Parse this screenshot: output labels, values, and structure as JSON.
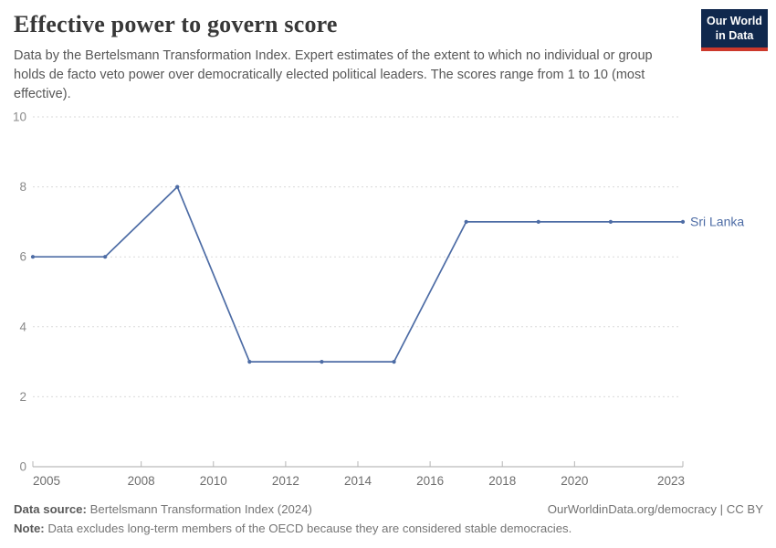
{
  "header": {
    "title": "Effective power to govern score",
    "subtitle": "Data by the Bertelsmann Transformation Index. Expert estimates of the extent to which no individual or group holds de facto veto power over democratically elected political leaders. The scores range from 1 to 10 (most effective).",
    "logo": {
      "line1": "Our World",
      "line2": "in Data"
    }
  },
  "chart_data": {
    "type": "line",
    "title": "Effective power to govern score",
    "series": [
      {
        "name": "Sri Lanka",
        "x": [
          2005,
          2007,
          2009,
          2011,
          2013,
          2015,
          2017,
          2019,
          2021,
          2023
        ],
        "values": [
          6,
          6,
          8,
          3,
          3,
          3,
          7,
          7,
          7,
          7
        ],
        "color": "#4d6ca5"
      }
    ],
    "xlim": [
      2005,
      2023
    ],
    "ylim": [
      0,
      10
    ],
    "x_ticks": [
      2005,
      2008,
      2010,
      2012,
      2014,
      2016,
      2018,
      2020,
      2023
    ],
    "y_ticks": [
      0,
      2,
      4,
      6,
      8,
      10
    ],
    "grid": "horizontal-dashed",
    "legend_position": "end-of-line-label",
    "xlabel": "",
    "ylabel": ""
  },
  "colors": {
    "line": "#4d6ca5",
    "series_label": "#4d6ca5",
    "gridline": "#dadada",
    "axis_line": "#a8a8a8",
    "tick_mark": "#b5b5b5",
    "y_tick_text": "#8a8a8a",
    "x_tick_text": "#6e6e6e",
    "logo_bg": "#10284d",
    "logo_stripe": "#cc382b"
  },
  "footer": {
    "data_source_label": "Data source:",
    "data_source_value": "Bertelsmann Transformation Index (2024)",
    "link": "OurWorldinData.org/democracy | CC BY",
    "note_label": "Note:",
    "note_value": "Data excludes long-term members of the OECD because they are considered stable democracies."
  }
}
